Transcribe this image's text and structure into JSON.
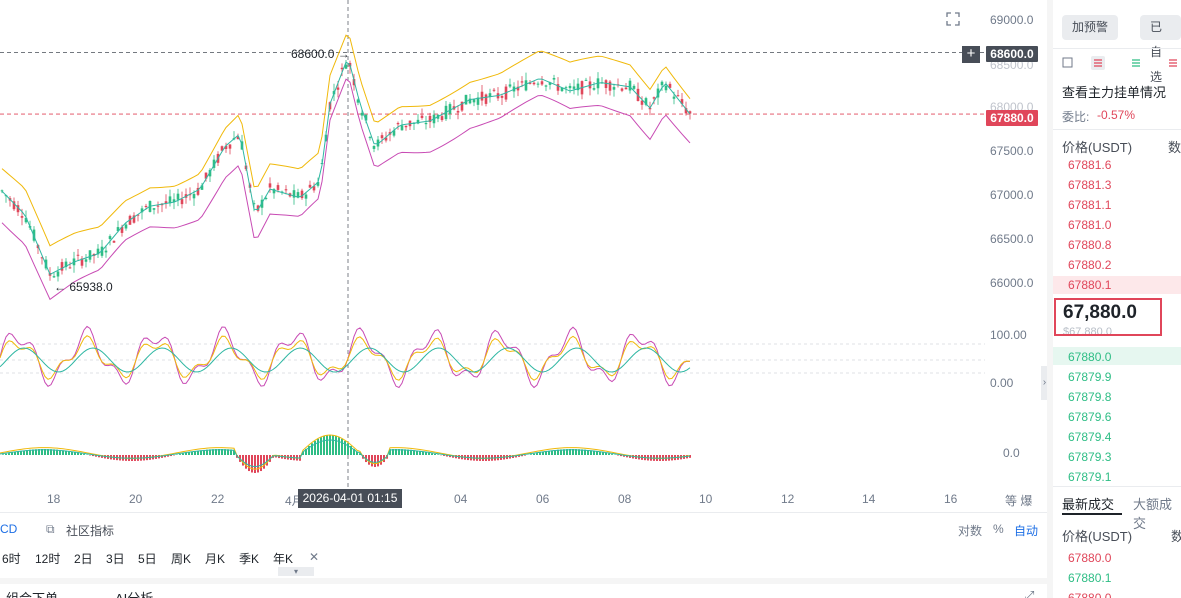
{
  "chart": {
    "y_axis_labels": [
      "69000.0",
      "67500.0",
      "67000.0",
      "66500.0",
      "66000.0"
    ],
    "y_axis_labels_faded": [
      "68500.0",
      "68000.0"
    ],
    "x_axis_labels": [
      "18",
      "20",
      "22",
      "4月",
      "04",
      "06",
      "08",
      "10",
      "12",
      "14",
      "16"
    ],
    "high_marker": "68600.0",
    "low_marker": "65938.0",
    "high_tag": "68600.0",
    "last_price_tag": "67880.0",
    "crosshair_time": "2026-04-01 01:15",
    "kdj_axis": [
      "100.00",
      "0.00"
    ],
    "macd_axis": "0.0",
    "plus_label": "+",
    "right_tools": "等  爆",
    "colors": {
      "up": "#2ebd85",
      "down": "#e0465a",
      "upper": "#f0b90b",
      "lower": "#c84bb4",
      "mid": "#2fb7a3"
    }
  },
  "indicator_bar": {
    "macd_tail": "CD",
    "community_label": "社区指标",
    "scale_options": [
      "对数",
      "%",
      "自动"
    ]
  },
  "intervals": [
    "6时",
    "12时",
    "2日",
    "3日",
    "5日",
    "周K",
    "月K",
    "季K",
    "年K",
    "✕"
  ],
  "bottom_tabs": [
    "组合下单",
    "AI分析"
  ],
  "right_panel": {
    "buttons": [
      "加预警",
      "已自选"
    ],
    "depth_title": "查看主力挂单情况",
    "ratio_label": "委比:",
    "ratio_value": "-0.57%",
    "price_header": "价格(USDT)",
    "qty_header_clip": "数",
    "asks": [
      "67881.6",
      "67881.3",
      "67881.1",
      "67881.0",
      "67880.8",
      "67880.2",
      "67880.1"
    ],
    "last_price": "67,880.0",
    "last_price_sub": "$67,880.0",
    "bids": [
      "67880.0",
      "67879.9",
      "67879.8",
      "67879.6",
      "67879.4",
      "67879.3",
      "67879.1"
    ],
    "trades_tab_active": "最新成交",
    "trades_tab_other": "大额成交",
    "trades_price_header": "价格(USDT)",
    "trades_qty_clip": "数",
    "trades": [
      "67880.0",
      "67880.1",
      "67880.0"
    ]
  },
  "chart_data": {
    "type": "candlestick",
    "series": [
      {
        "name": "price",
        "y_range": [
          65700,
          69100
        ],
        "open": 66800,
        "close": 67880,
        "high": 68600,
        "low": 65938
      }
    ]
  }
}
